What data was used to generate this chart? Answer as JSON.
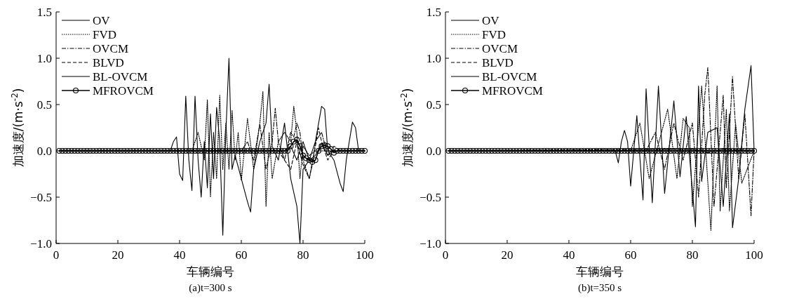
{
  "chart_data": [
    {
      "type": "line",
      "xlabel": "车辆编号",
      "ylabel": "加速度/(m·s$^{-2}$)",
      "annotations": [
        "(a)t=300 s"
      ],
      "legend": "top left",
      "xlim": [
        0,
        100
      ],
      "xticks": [
        0,
        20,
        40,
        60,
        80,
        100
      ],
      "ylim": [
        -1,
        1.5
      ],
      "yticks": [
        {
          "value": -1,
          "label": "−1.0"
        },
        {
          "value": -0.5,
          "label": "−0.5"
        },
        {
          "value": 0,
          "label": "0.0"
        },
        {
          "value": 0.5,
          "label": "0.5"
        },
        {
          "value": 1,
          "label": "1.0"
        },
        {
          "value": 1.5,
          "label": "1.5"
        }
      ],
      "x": [
        1,
        2,
        3,
        4,
        5,
        6,
        7,
        8,
        9,
        10,
        11,
        12,
        13,
        14,
        15,
        16,
        17,
        18,
        19,
        20,
        21,
        22,
        23,
        24,
        25,
        26,
        27,
        28,
        29,
        30,
        31,
        32,
        33,
        34,
        35,
        36,
        37,
        38,
        39,
        40,
        41,
        42,
        43,
        44,
        45,
        46,
        47,
        48,
        49,
        50,
        51,
        52,
        53,
        54,
        55,
        56,
        57,
        58,
        59,
        60,
        61,
        62,
        63,
        64,
        65,
        66,
        67,
        68,
        69,
        70,
        71,
        72,
        73,
        74,
        75,
        76,
        77,
        78,
        79,
        80,
        81,
        82,
        83,
        84,
        85,
        86,
        87,
        88,
        89,
        90,
        91,
        92,
        93,
        94,
        95,
        96,
        97,
        98,
        99,
        100
      ],
      "series": [
        {
          "name": "OV",
          "color": "#000000",
          "line_style": "solid",
          "marker": "none",
          "x": [
            1,
            37,
            38,
            39,
            40,
            41,
            42,
            43,
            44,
            45,
            46,
            47,
            48,
            49,
            50,
            51,
            52,
            53,
            54,
            55,
            56,
            57,
            58,
            60,
            62,
            63,
            64,
            66,
            68,
            69,
            70,
            72,
            74,
            76,
            78,
            79,
            80,
            82,
            84,
            86,
            87,
            88,
            90,
            92,
            93,
            94,
            96,
            97,
            98,
            100
          ],
          "values": [
            0,
            0,
            0.1,
            0.15,
            -0.25,
            -0.32,
            0.59,
            -0.1,
            -0.43,
            0.59,
            -0.1,
            -0.5,
            0.1,
            -0.4,
            0.4,
            -0.3,
            0.47,
            0.1,
            -0.91,
            0.2,
            1.0,
            -0.2,
            -0.05,
            -0.3,
            -0.55,
            -0.66,
            -0.2,
            0.1,
            0.3,
            0.72,
            0.05,
            -0.1,
            0.3,
            -0.3,
            -0.6,
            -1.0,
            -0.2,
            -0.1,
            0.1,
            0.48,
            0.45,
            0.0,
            -0.1,
            -0.35,
            -0.44,
            -0.1,
            0.31,
            0.25,
            0.0,
            0
          ]
        },
        {
          "name": "FVD",
          "color": "#000000",
          "line_style": "dotted",
          "marker": "none",
          "x": [
            1,
            44,
            46,
            48,
            49,
            50,
            51,
            52,
            53,
            54,
            55,
            56,
            57,
            58,
            59,
            60,
            62,
            64,
            66,
            67,
            68,
            69,
            70,
            72,
            74,
            76,
            77,
            78,
            79,
            80,
            82,
            84,
            100
          ],
          "values": [
            0,
            0,
            0.2,
            -0.1,
            0.55,
            -0.5,
            0.2,
            -0.3,
            0.6,
            -0.2,
            0.3,
            -0.2,
            0.44,
            -0.1,
            0.2,
            -0.32,
            0.35,
            -0.2,
            0.3,
            0.64,
            -0.6,
            0.2,
            -0.3,
            0.1,
            0.2,
            0.1,
            0.48,
            0.2,
            -0.3,
            0.05,
            -0.05,
            0,
            0
          ]
        },
        {
          "name": "OVCM",
          "color": "#000000",
          "line_style": "dashdot",
          "marker": "none",
          "x": [
            1,
            60,
            62,
            64,
            66,
            68,
            70,
            71,
            72,
            74,
            76,
            77,
            78,
            79,
            80,
            82,
            83,
            84,
            86,
            88,
            90,
            92,
            100
          ],
          "values": [
            0,
            0,
            0.1,
            -0.1,
            0.29,
            -0.2,
            0.1,
            0.46,
            0.1,
            -0.1,
            0.2,
            0.15,
            0.3,
            0.2,
            -0.1,
            -0.3,
            -0.15,
            0.1,
            0.2,
            -0.05,
            0.05,
            0,
            0
          ]
        },
        {
          "name": "BLVD",
          "color": "#000000",
          "line_style": "dashed",
          "marker": "none",
          "x": [
            1,
            72,
            74,
            76,
            78,
            80,
            82,
            84,
            85,
            86,
            88,
            90,
            92,
            100
          ],
          "values": [
            0,
            0,
            -0.1,
            -0.2,
            0.1,
            -0.15,
            -0.3,
            0.05,
            0.25,
            0.1,
            -0.1,
            0,
            0,
            0
          ]
        },
        {
          "name": "BL-OVCM",
          "color": "#000000",
          "line_style": "solid",
          "marker": "none",
          "x": [
            1,
            74,
            76,
            78,
            80,
            82,
            84,
            86,
            88,
            90,
            100
          ],
          "values": [
            0,
            0,
            0.05,
            -0.1,
            0.1,
            -0.1,
            -0.05,
            0.08,
            -0.05,
            0,
            0
          ]
        },
        {
          "name": "MFROVCM",
          "color": "#000000",
          "line_style": "solid",
          "marker": "circle",
          "values": [
            0,
            0,
            0,
            0,
            0,
            0,
            0,
            0,
            0,
            0,
            0,
            0,
            0,
            0,
            0,
            0,
            0,
            0,
            0,
            0,
            0,
            0,
            0,
            0,
            0,
            0,
            0,
            0,
            0,
            0,
            0,
            0,
            0,
            0,
            0,
            0,
            0,
            0,
            0,
            0,
            0,
            0,
            0,
            0,
            0,
            0,
            0,
            0,
            0,
            0,
            0,
            0,
            0,
            0,
            0,
            0,
            0,
            0,
            0,
            0,
            0,
            0,
            0,
            0,
            0,
            0,
            0,
            0,
            0,
            0,
            0,
            0,
            0,
            0,
            0,
            0.05,
            0.1,
            0.12,
            0.05,
            -0.05,
            -0.08,
            -0.1,
            -0.12,
            -0.1,
            0,
            0.05,
            0.06,
            0.05,
            0.02,
            -0.02,
            0,
            0,
            0,
            0,
            0,
            0,
            0,
            0,
            0,
            0
          ]
        }
      ]
    },
    {
      "type": "line",
      "xlabel": "车辆编号",
      "ylabel": "加速度/(m·s$^{-2}$)",
      "annotations": [
        "(b)t=350 s"
      ],
      "legend": "top left",
      "xlim": [
        0,
        100
      ],
      "xticks": [
        0,
        20,
        40,
        60,
        80,
        100
      ],
      "ylim": [
        -1,
        1.5
      ],
      "yticks": [
        {
          "value": -1,
          "label": "−1.0"
        },
        {
          "value": -0.5,
          "label": "−0.5"
        },
        {
          "value": 0,
          "label": "0.0"
        },
        {
          "value": 0.5,
          "label": "0.5"
        },
        {
          "value": 1,
          "label": "1.0"
        },
        {
          "value": 1.5,
          "label": "1.5"
        }
      ],
      "x": [
        1,
        2,
        3,
        4,
        5,
        6,
        7,
        8,
        9,
        10,
        11,
        12,
        13,
        14,
        15,
        16,
        17,
        18,
        19,
        20,
        21,
        22,
        23,
        24,
        25,
        26,
        27,
        28,
        29,
        30,
        31,
        32,
        33,
        34,
        35,
        36,
        37,
        38,
        39,
        40,
        41,
        42,
        43,
        44,
        45,
        46,
        47,
        48,
        49,
        50,
        51,
        52,
        53,
        54,
        55,
        56,
        57,
        58,
        59,
        60,
        61,
        62,
        63,
        64,
        65,
        66,
        67,
        68,
        69,
        70,
        71,
        72,
        73,
        74,
        75,
        76,
        77,
        78,
        79,
        80,
        81,
        82,
        83,
        84,
        85,
        86,
        87,
        88,
        89,
        90,
        91,
        92,
        93,
        94,
        95,
        96,
        97,
        98,
        99,
        100
      ],
      "series": [
        {
          "name": "OV",
          "color": "#000000",
          "line_style": "solid",
          "marker": "none",
          "x": [
            1,
            55,
            56,
            57,
            58,
            59,
            60,
            62,
            64,
            65,
            67,
            69,
            71,
            74,
            76,
            78,
            81,
            82,
            83,
            85,
            88,
            90,
            92,
            93,
            95,
            97,
            99,
            100
          ],
          "values": [
            0,
            0,
            -0.13,
            0.1,
            0.22,
            0.1,
            -0.38,
            0.38,
            -0.53,
            0.67,
            -0.56,
            0.7,
            -0.46,
            0.54,
            -0.28,
            0.37,
            -0.82,
            0.7,
            -0.33,
            0.2,
            0.25,
            -0.6,
            0.4,
            -0.83,
            -0.3,
            0.45,
            0.92,
            0
          ]
        },
        {
          "name": "FVD",
          "color": "#000000",
          "line_style": "dotted",
          "marker": "none",
          "x": [
            1,
            60,
            63,
            66,
            70,
            72,
            75,
            77,
            79,
            80,
            83,
            86,
            88,
            89,
            91,
            92,
            94,
            96,
            100
          ],
          "values": [
            0,
            0,
            0.3,
            -0.3,
            0.2,
            0.45,
            -0.3,
            0.35,
            0.25,
            -0.6,
            0.7,
            -0.86,
            0.7,
            -0.65,
            0.45,
            -0.65,
            0.3,
            -0.35,
            0
          ]
        },
        {
          "name": "OVCM",
          "color": "#000000",
          "line_style": "dashdot",
          "marker": "none",
          "x": [
            1,
            65,
            68,
            71,
            74,
            77,
            80,
            82,
            84,
            85,
            87,
            90,
            91,
            93,
            95,
            97,
            99,
            100
          ],
          "values": [
            0,
            0,
            0.2,
            -0.2,
            0.3,
            -0.1,
            0.3,
            -0.5,
            0.6,
            0.9,
            -0.6,
            0.6,
            -0.4,
            0.8,
            -0.3,
            0.4,
            -0.7,
            0
          ]
        },
        {
          "name": "BLVD",
          "color": "#000000",
          "line_style": "dashed",
          "marker": "none",
          "x": [
            1,
            80,
            85,
            90,
            100
          ],
          "values": [
            0,
            0.02,
            -0.02,
            0.02,
            0
          ]
        },
        {
          "name": "BL-OVCM",
          "color": "#000000",
          "line_style": "solid",
          "marker": "none",
          "x": [
            1,
            100
          ],
          "values": [
            0,
            0
          ]
        },
        {
          "name": "MFROVCM",
          "color": "#000000",
          "line_style": "solid",
          "marker": "circle",
          "values": [
            0,
            0,
            0,
            0,
            0,
            0,
            0,
            0,
            0,
            0,
            0,
            0,
            0,
            0,
            0,
            0,
            0,
            0,
            0,
            0,
            0,
            0,
            0,
            0,
            0,
            0,
            0,
            0,
            0,
            0,
            0,
            0,
            0,
            0,
            0,
            0,
            0,
            0,
            0,
            0,
            0,
            0,
            0,
            0,
            0,
            0,
            0,
            0,
            0,
            0,
            0,
            0,
            0,
            0,
            0,
            0,
            0,
            0,
            0,
            0,
            0,
            0,
            0,
            0,
            0,
            0,
            0,
            0,
            0,
            0,
            0,
            0,
            0,
            0,
            0,
            0,
            0,
            0,
            0,
            0,
            0,
            0,
            0,
            0,
            0,
            0,
            0,
            0,
            0,
            0,
            0,
            0,
            0,
            0,
            0,
            0,
            0,
            0,
            0,
            0
          ]
        }
      ]
    }
  ]
}
